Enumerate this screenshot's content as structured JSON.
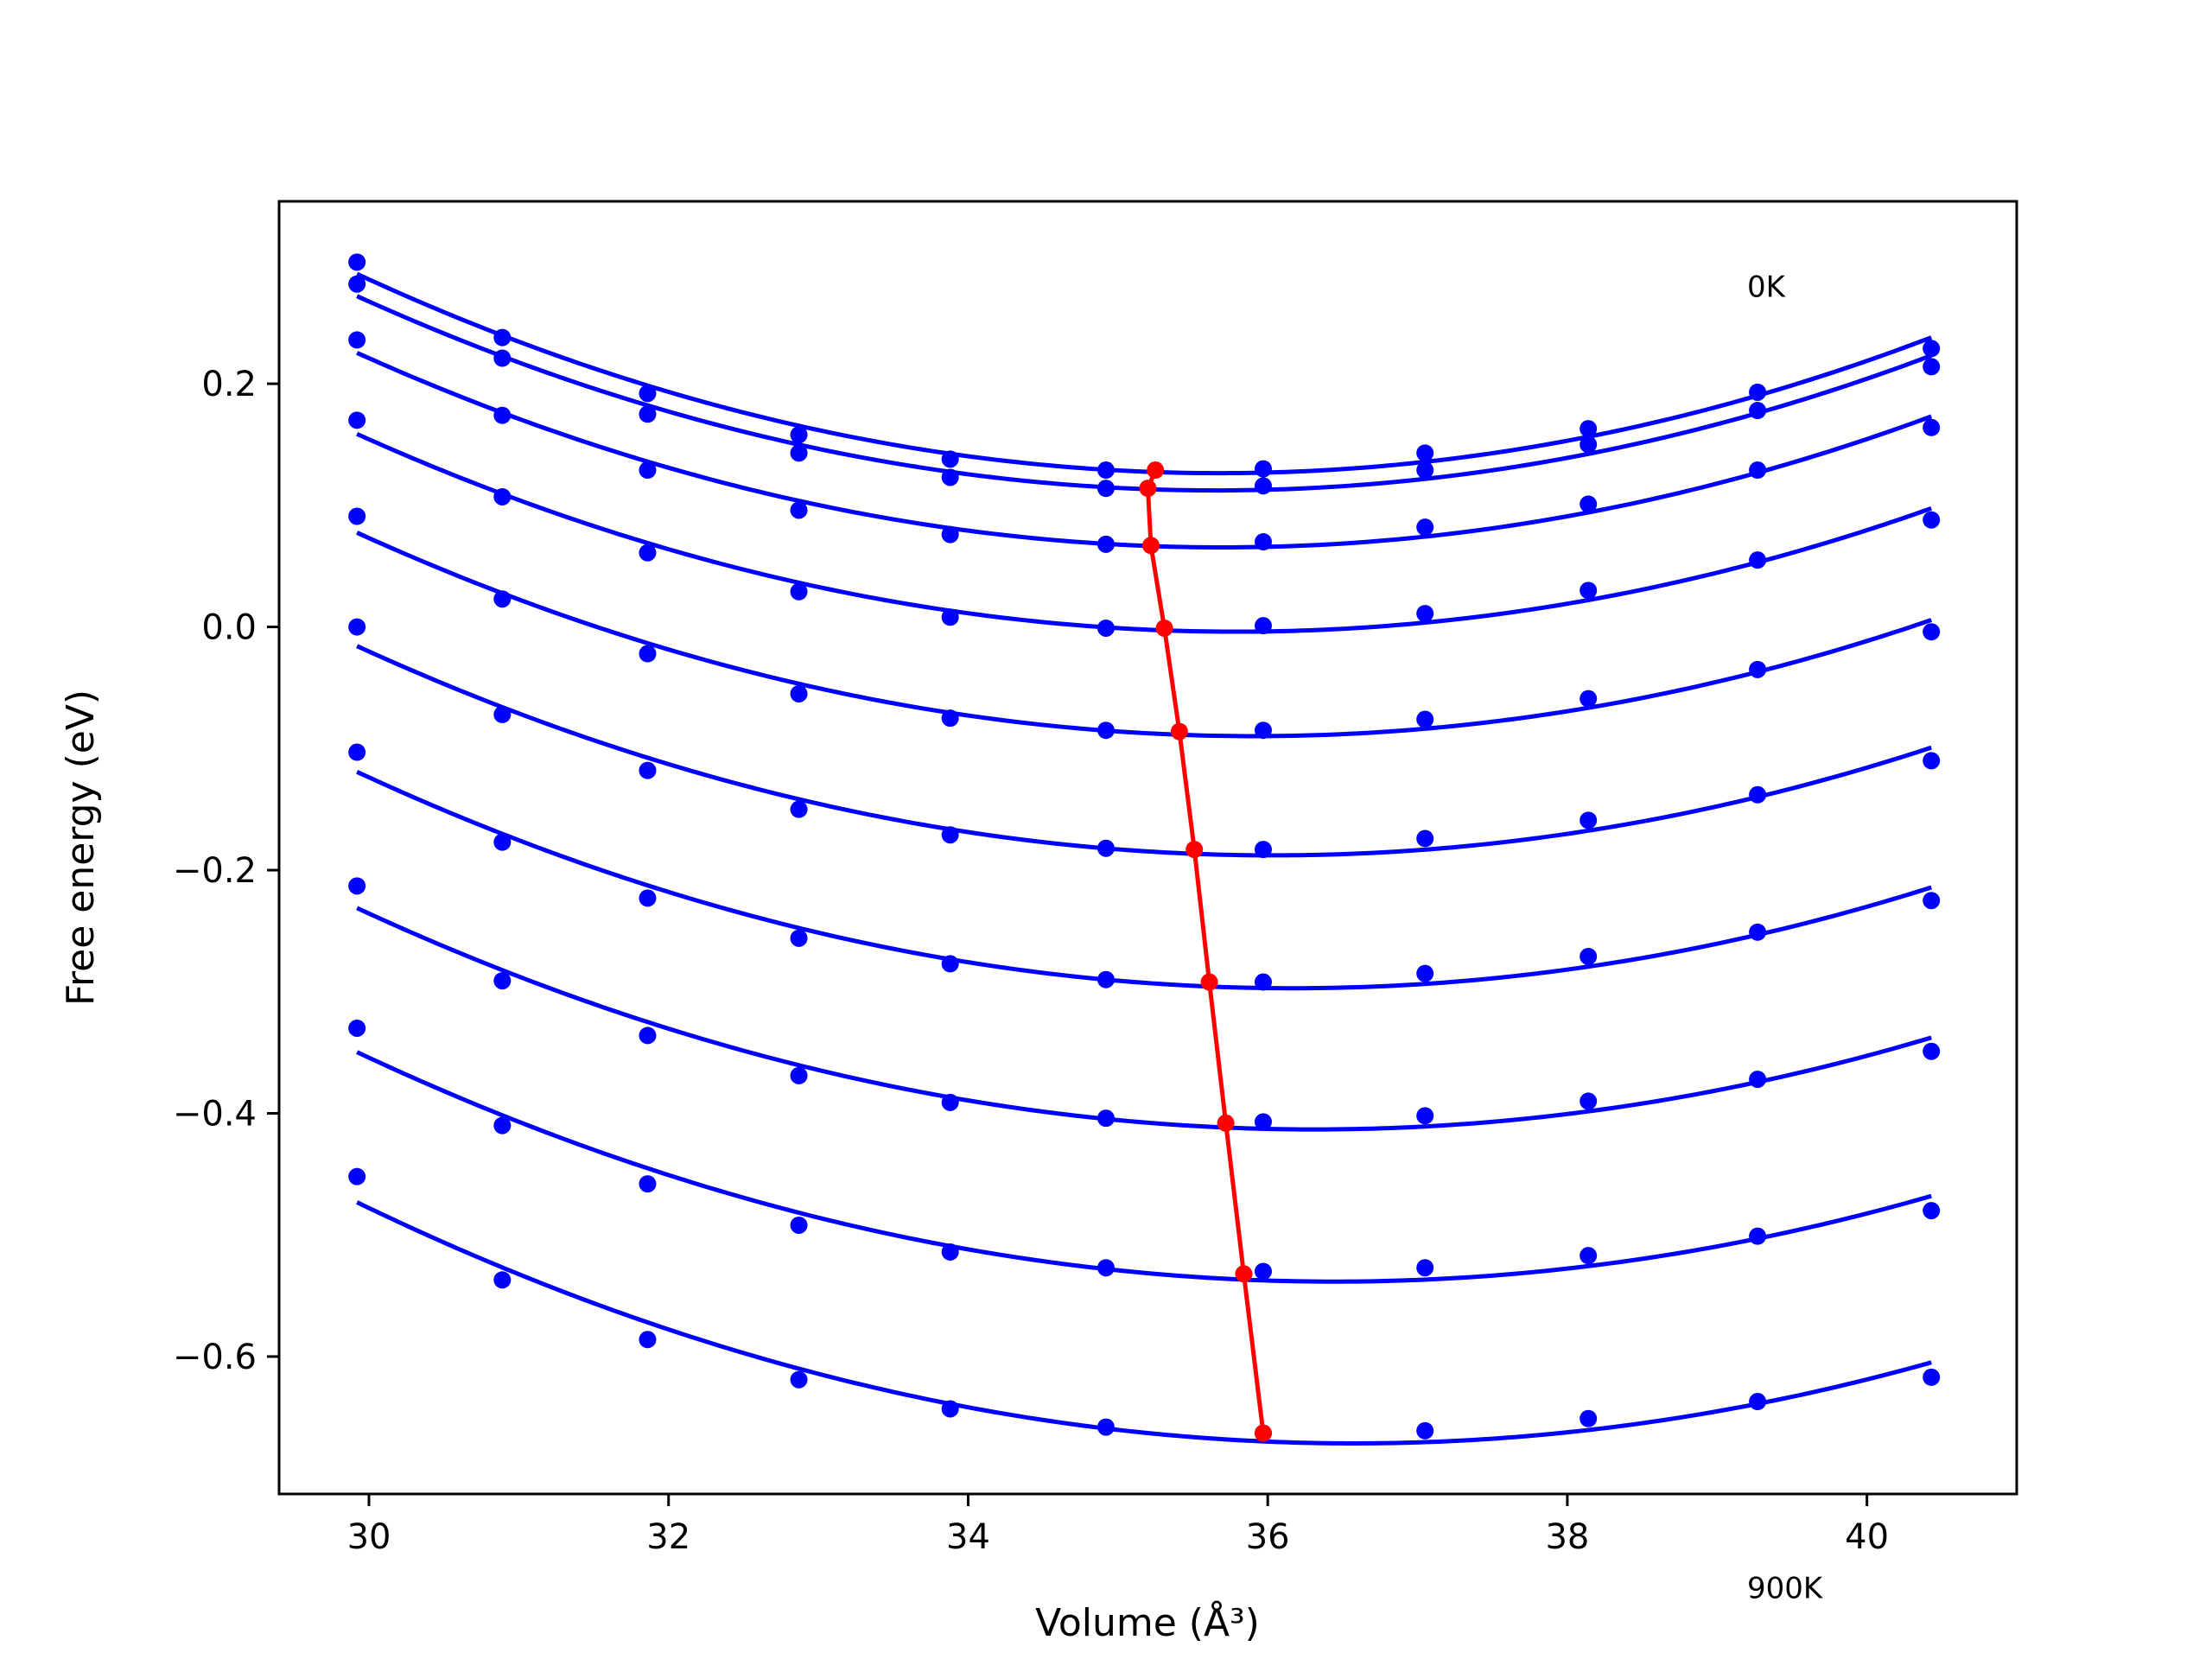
{
  "chart_data": {
    "type": "line",
    "xlabel": "Volume (Å³)",
    "ylabel": "Free energy (eV)",
    "xlim": [
      29.4,
      41.0
    ],
    "ylim": [
      -0.713,
      0.35
    ],
    "xticks": [
      30,
      32,
      34,
      36,
      38,
      40
    ],
    "yticks": [
      -0.6,
      -0.4,
      -0.2,
      0.0,
      0.2
    ],
    "xtick_labels": [
      "30",
      "32",
      "34",
      "36",
      "38",
      "40"
    ],
    "ytick_labels": [
      "−0.6",
      "−0.4",
      "−0.2",
      "0.0",
      "0.2"
    ],
    "annotations": [
      {
        "text": "0K",
        "x": 39.2,
        "y": 0.28
      },
      {
        "text": "900K",
        "x": 39.2,
        "y": -0.79
      }
    ],
    "grid": false,
    "colors": {
      "curves": "#0000ff",
      "minimum_path": "#ff0000",
      "frame": "#000000"
    },
    "x": [
      29.92,
      30.89,
      31.86,
      32.87,
      33.88,
      34.92,
      35.97,
      37.05,
      38.14,
      39.27,
      40.43
    ],
    "series": [
      {
        "values": [
          0.3,
          0.238,
          0.192,
          0.158,
          0.138,
          0.129,
          0.13,
          0.143,
          0.163,
          0.193,
          0.229
        ]
      },
      {
        "values": [
          0.282,
          0.221,
          0.175,
          0.143,
          0.123,
          0.114,
          0.116,
          0.129,
          0.15,
          0.178,
          0.214
        ]
      },
      {
        "values": [
          0.236,
          0.174,
          0.129,
          0.096,
          0.076,
          0.068,
          0.07,
          0.082,
          0.101,
          0.129,
          0.164
        ]
      },
      {
        "values": [
          0.17,
          0.107,
          0.061,
          0.029,
          0.008,
          -0.001,
          0.001,
          0.011,
          0.03,
          0.055,
          0.088
        ]
      },
      {
        "values": [
          0.091,
          0.023,
          -0.022,
          -0.055,
          -0.075,
          -0.085,
          -0.085,
          -0.076,
          -0.059,
          -0.035,
          -0.004
        ]
      },
      {
        "values": [
          0.0,
          -0.072,
          -0.118,
          -0.15,
          -0.171,
          -0.182,
          -0.183,
          -0.174,
          -0.159,
          -0.138,
          -0.11
        ]
      },
      {
        "values": [
          -0.103,
          -0.177,
          -0.223,
          -0.256,
          -0.277,
          -0.29,
          -0.292,
          -0.285,
          -0.271,
          -0.251,
          -0.225
        ]
      },
      {
        "values": [
          -0.213,
          -0.291,
          -0.336,
          -0.369,
          -0.391,
          -0.404,
          -0.407,
          -0.402,
          -0.39,
          -0.372,
          -0.349
        ]
      },
      {
        "values": [
          -0.33,
          -0.41,
          -0.458,
          -0.492,
          -0.514,
          -0.527,
          -0.53,
          -0.527,
          -0.517,
          -0.501,
          -0.48
        ]
      },
      {
        "values": [
          -0.452,
          -0.537,
          -0.586,
          -0.619,
          -0.643,
          -0.658,
          -0.663,
          -0.661,
          -0.651,
          -0.637,
          -0.617
        ]
      }
    ],
    "minimum_path": {
      "x": [
        35.25,
        35.2,
        35.22,
        35.31,
        35.41,
        35.51,
        35.61,
        35.72,
        35.84,
        35.97
      ],
      "y": [
        0.129,
        0.114,
        0.067,
        -0.001,
        -0.086,
        -0.183,
        -0.292,
        -0.408,
        -0.532,
        -0.663
      ]
    }
  }
}
